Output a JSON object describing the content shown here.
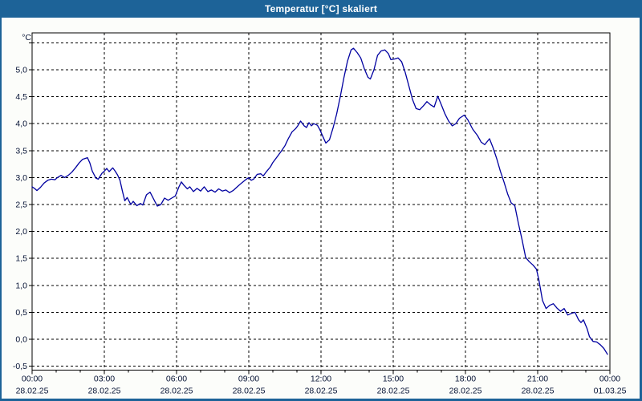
{
  "window": {
    "title": "Temperatur [°C] skaliert"
  },
  "colors": {
    "titlebar": "#1d6398",
    "window_border": "#1d6398",
    "panel_background": "#fcfdfa",
    "plot_background": "#ffffff",
    "grid": "#000000",
    "frame": "#000000",
    "axis_text": "#061335",
    "title_text": "#ffffff",
    "series_line": "#0000a0"
  },
  "chart_data": {
    "type": "line",
    "title": "Temperatur [°C] skaliert",
    "xlabel": "",
    "ylabel": "°C",
    "grid": "dashed, on, every 0.5 °C horizontal and every 3 h vertical",
    "legend_position": "none",
    "x_axis": {
      "range_hours": [
        0,
        24
      ],
      "major_step_hours": 3,
      "minor_step_hours": 1,
      "ticks": [
        {
          "h": 0,
          "time": "00:00",
          "date": "28.02.25"
        },
        {
          "h": 3,
          "time": "03:00",
          "date": "28.02.25"
        },
        {
          "h": 6,
          "time": "06:00",
          "date": "28.02.25"
        },
        {
          "h": 9,
          "time": "09:00",
          "date": "28.02.25"
        },
        {
          "h": 12,
          "time": "12:00",
          "date": "28.02.25"
        },
        {
          "h": 15,
          "time": "15:00",
          "date": "28.02.25"
        },
        {
          "h": 18,
          "time": "18:00",
          "date": "28.02.25"
        },
        {
          "h": 21,
          "time": "21:00",
          "date": "28.02.25"
        },
        {
          "h": 24,
          "time": "00:00",
          "date": "01.03.25"
        }
      ]
    },
    "y_axis": {
      "unit": "°C",
      "min": -0.5,
      "max": 5.5,
      "step": 0.5,
      "gridline_values": [
        -0.5,
        0.0,
        0.5,
        1.0,
        1.5,
        2.0,
        2.5,
        3.0,
        3.5,
        4.0,
        4.5,
        5.0,
        5.5
      ],
      "ticks": [
        {
          "v": 5.0,
          "label": "5,0"
        },
        {
          "v": 4.5,
          "label": "4,5"
        },
        {
          "v": 4.0,
          "label": "4,0"
        },
        {
          "v": 3.5,
          "label": "3,5"
        },
        {
          "v": 3.0,
          "label": "3,0"
        },
        {
          "v": 2.5,
          "label": "2,5"
        },
        {
          "v": 2.0,
          "label": "2,0"
        },
        {
          "v": 1.5,
          "label": "1,5"
        },
        {
          "v": 1.0,
          "label": "1,0"
        },
        {
          "v": 0.5,
          "label": "0,5"
        },
        {
          "v": 0.0,
          "label": "0,0"
        },
        {
          "v": -0.5,
          "label": "-0,5"
        }
      ]
    },
    "series": [
      {
        "name": "Temperatur",
        "color": "#0000a0",
        "points": [
          [
            0.0,
            2.83
          ],
          [
            0.1,
            2.8
          ],
          [
            0.2,
            2.76
          ],
          [
            0.35,
            2.82
          ],
          [
            0.5,
            2.9
          ],
          [
            0.65,
            2.95
          ],
          [
            0.8,
            2.97
          ],
          [
            0.95,
            2.96
          ],
          [
            1.05,
            3.0
          ],
          [
            1.2,
            3.04
          ],
          [
            1.35,
            3.0
          ],
          [
            1.5,
            3.04
          ],
          [
            1.65,
            3.1
          ],
          [
            1.8,
            3.18
          ],
          [
            1.95,
            3.27
          ],
          [
            2.1,
            3.34
          ],
          [
            2.3,
            3.37
          ],
          [
            2.4,
            3.27
          ],
          [
            2.5,
            3.12
          ],
          [
            2.65,
            2.99
          ],
          [
            2.75,
            2.97
          ],
          [
            2.9,
            3.08
          ],
          [
            3.0,
            3.12
          ],
          [
            3.1,
            3.17
          ],
          [
            3.2,
            3.11
          ],
          [
            3.35,
            3.18
          ],
          [
            3.45,
            3.12
          ],
          [
            3.55,
            3.05
          ],
          [
            3.65,
            2.95
          ],
          [
            3.75,
            2.75
          ],
          [
            3.85,
            2.57
          ],
          [
            3.95,
            2.63
          ],
          [
            4.1,
            2.5
          ],
          [
            4.2,
            2.56
          ],
          [
            4.35,
            2.48
          ],
          [
            4.5,
            2.52
          ],
          [
            4.6,
            2.49
          ],
          [
            4.75,
            2.68
          ],
          [
            4.9,
            2.73
          ],
          [
            5.05,
            2.6
          ],
          [
            5.2,
            2.47
          ],
          [
            5.35,
            2.5
          ],
          [
            5.5,
            2.62
          ],
          [
            5.65,
            2.58
          ],
          [
            5.8,
            2.62
          ],
          [
            5.95,
            2.66
          ],
          [
            6.1,
            2.83
          ],
          [
            6.2,
            2.92
          ],
          [
            6.3,
            2.86
          ],
          [
            6.45,
            2.79
          ],
          [
            6.55,
            2.83
          ],
          [
            6.7,
            2.74
          ],
          [
            6.85,
            2.8
          ],
          [
            7.0,
            2.75
          ],
          [
            7.15,
            2.83
          ],
          [
            7.3,
            2.74
          ],
          [
            7.45,
            2.77
          ],
          [
            7.6,
            2.73
          ],
          [
            7.75,
            2.79
          ],
          [
            7.9,
            2.75
          ],
          [
            8.05,
            2.77
          ],
          [
            8.2,
            2.72
          ],
          [
            8.35,
            2.76
          ],
          [
            8.5,
            2.82
          ],
          [
            8.7,
            2.9
          ],
          [
            8.9,
            2.97
          ],
          [
            9.0,
            3.0
          ],
          [
            9.1,
            2.95
          ],
          [
            9.2,
            2.97
          ],
          [
            9.35,
            3.06
          ],
          [
            9.5,
            3.07
          ],
          [
            9.6,
            3.03
          ],
          [
            9.75,
            3.12
          ],
          [
            9.9,
            3.2
          ],
          [
            10.0,
            3.28
          ],
          [
            10.2,
            3.4
          ],
          [
            10.35,
            3.49
          ],
          [
            10.5,
            3.59
          ],
          [
            10.65,
            3.73
          ],
          [
            10.8,
            3.85
          ],
          [
            10.95,
            3.91
          ],
          [
            11.05,
            3.97
          ],
          [
            11.15,
            4.05
          ],
          [
            11.3,
            3.96
          ],
          [
            11.4,
            3.93
          ],
          [
            11.5,
            4.02
          ],
          [
            11.6,
            3.96
          ],
          [
            11.7,
            4.0
          ],
          [
            11.85,
            3.97
          ],
          [
            11.95,
            3.89
          ],
          [
            12.1,
            3.74
          ],
          [
            12.2,
            3.64
          ],
          [
            12.35,
            3.7
          ],
          [
            12.5,
            3.92
          ],
          [
            12.65,
            4.18
          ],
          [
            12.8,
            4.5
          ],
          [
            12.95,
            4.85
          ],
          [
            13.1,
            5.16
          ],
          [
            13.25,
            5.37
          ],
          [
            13.35,
            5.4
          ],
          [
            13.5,
            5.32
          ],
          [
            13.65,
            5.22
          ],
          [
            13.8,
            5.02
          ],
          [
            13.95,
            4.86
          ],
          [
            14.05,
            4.83
          ],
          [
            14.2,
            5.0
          ],
          [
            14.35,
            5.27
          ],
          [
            14.5,
            5.35
          ],
          [
            14.65,
            5.37
          ],
          [
            14.8,
            5.3
          ],
          [
            14.9,
            5.19
          ],
          [
            15.05,
            5.2
          ],
          [
            15.2,
            5.22
          ],
          [
            15.35,
            5.15
          ],
          [
            15.5,
            4.95
          ],
          [
            15.65,
            4.7
          ],
          [
            15.8,
            4.45
          ],
          [
            15.95,
            4.28
          ],
          [
            16.1,
            4.26
          ],
          [
            16.25,
            4.33
          ],
          [
            16.4,
            4.41
          ],
          [
            16.55,
            4.35
          ],
          [
            16.7,
            4.31
          ],
          [
            16.85,
            4.51
          ],
          [
            17.0,
            4.35
          ],
          [
            17.15,
            4.18
          ],
          [
            17.3,
            4.05
          ],
          [
            17.45,
            3.96
          ],
          [
            17.6,
            4.0
          ],
          [
            17.75,
            4.1
          ],
          [
            17.95,
            4.16
          ],
          [
            18.1,
            4.07
          ],
          [
            18.3,
            3.9
          ],
          [
            18.5,
            3.78
          ],
          [
            18.65,
            3.66
          ],
          [
            18.8,
            3.61
          ],
          [
            19.0,
            3.72
          ],
          [
            19.15,
            3.55
          ],
          [
            19.3,
            3.35
          ],
          [
            19.45,
            3.12
          ],
          [
            19.6,
            2.92
          ],
          [
            19.75,
            2.7
          ],
          [
            19.9,
            2.53
          ],
          [
            20.05,
            2.48
          ],
          [
            20.2,
            2.15
          ],
          [
            20.35,
            1.85
          ],
          [
            20.5,
            1.52
          ],
          [
            20.65,
            1.44
          ],
          [
            20.8,
            1.38
          ],
          [
            20.95,
            1.3
          ],
          [
            21.05,
            1.1
          ],
          [
            21.2,
            0.72
          ],
          [
            21.35,
            0.57
          ],
          [
            21.5,
            0.63
          ],
          [
            21.65,
            0.66
          ],
          [
            21.8,
            0.58
          ],
          [
            21.95,
            0.52
          ],
          [
            22.1,
            0.57
          ],
          [
            22.25,
            0.45
          ],
          [
            22.4,
            0.48
          ],
          [
            22.55,
            0.5
          ],
          [
            22.7,
            0.36
          ],
          [
            22.8,
            0.31
          ],
          [
            22.9,
            0.36
          ],
          [
            23.05,
            0.2
          ],
          [
            23.15,
            0.05
          ],
          [
            23.3,
            -0.04
          ],
          [
            23.45,
            -0.05
          ],
          [
            23.6,
            -0.1
          ],
          [
            23.75,
            -0.17
          ],
          [
            23.9,
            -0.28
          ]
        ]
      }
    ]
  }
}
